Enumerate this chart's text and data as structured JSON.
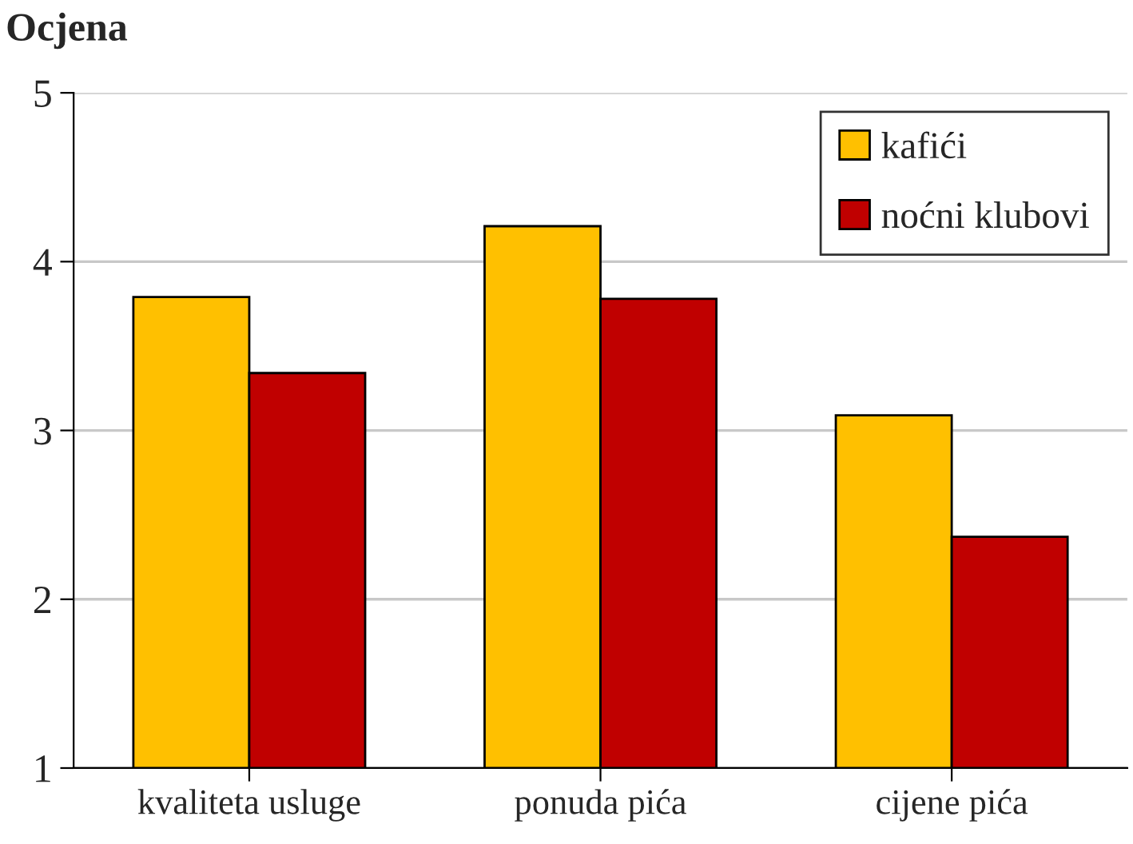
{
  "chart_data": {
    "type": "bar",
    "ylabel": "Ocjena",
    "categories": [
      "kvaliteta usluge",
      "ponuda pića",
      "cijene pića"
    ],
    "series": [
      {
        "name": "kafići",
        "color": "#ffc000",
        "values": [
          3.79,
          4.21,
          3.09
        ]
      },
      {
        "name": "noćni klubovi",
        "color": "#c00000",
        "values": [
          3.34,
          3.78,
          2.37
        ]
      }
    ],
    "ylim": [
      1,
      5
    ],
    "yticks": [
      1,
      2,
      3,
      4,
      5
    ],
    "grid": "y",
    "legend": "top right"
  }
}
